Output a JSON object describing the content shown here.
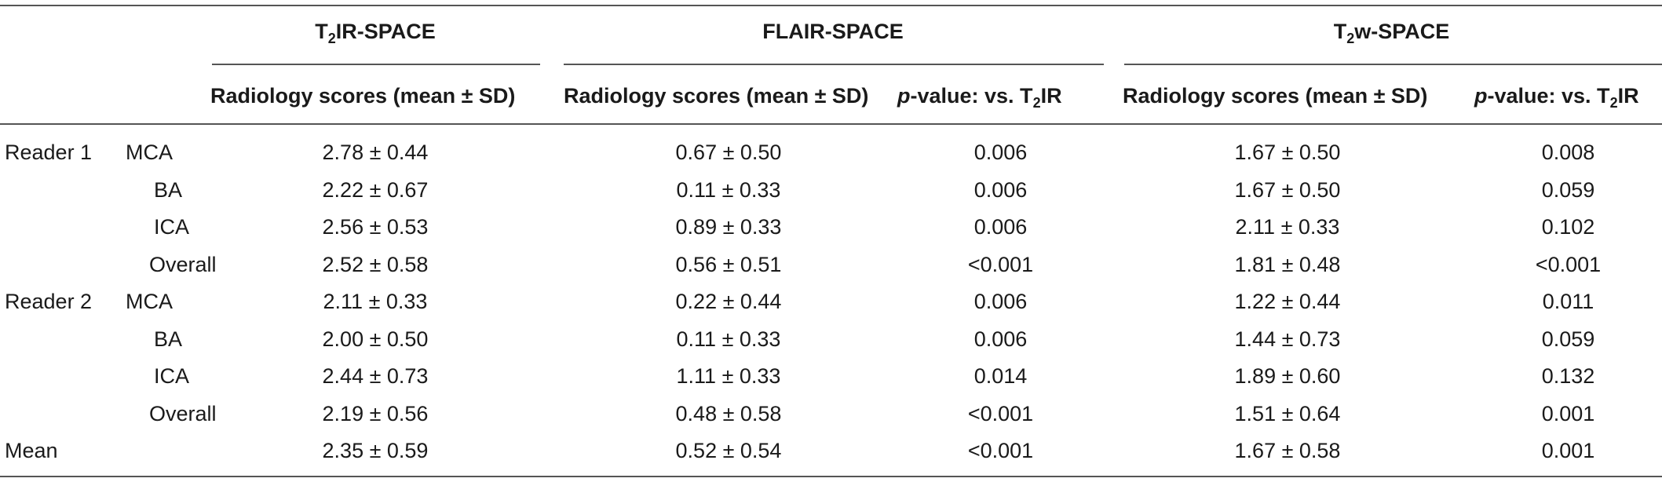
{
  "groups": [
    {
      "prefix": "T",
      "sub": "2",
      "suffix": "IR-SPACE"
    },
    {
      "prefix": "FLAIR-SPACE",
      "sub": "",
      "suffix": ""
    },
    {
      "prefix": "T",
      "sub": "2",
      "suffix": "w-SPACE"
    }
  ],
  "columns": {
    "scores": "Radiology scores (mean ± SD)",
    "pvalue_italic": "p",
    "pvalue_rest": "-value: vs. T",
    "pvalue_sub": "2",
    "pvalue_end": "IR"
  },
  "rows": [
    {
      "reader": "Reader 1",
      "artery": "MCA",
      "t2ir": "2.78 ± 0.44",
      "flair": "0.67 ± 0.50",
      "flair_p": "0.006",
      "t2w": "1.67 ± 0.50",
      "t2w_p": "0.008"
    },
    {
      "reader": "",
      "artery": "BA",
      "t2ir": "2.22 ± 0.67",
      "flair": "0.11 ± 0.33",
      "flair_p": "0.006",
      "t2w": "1.67 ± 0.50",
      "t2w_p": "0.059"
    },
    {
      "reader": "",
      "artery": "ICA",
      "t2ir": "2.56 ± 0.53",
      "flair": "0.89 ± 0.33",
      "flair_p": "0.006",
      "t2w": "2.11 ± 0.33",
      "t2w_p": "0.102"
    },
    {
      "reader": "",
      "artery": "Overall",
      "t2ir": "2.52 ± 0.58",
      "flair": "0.56 ± 0.51",
      "flair_p": "<0.001",
      "t2w": "1.81 ± 0.48",
      "t2w_p": "<0.001"
    },
    {
      "reader": "Reader 2",
      "artery": "MCA",
      "t2ir": "2.11 ± 0.33",
      "flair": "0.22 ± 0.44",
      "flair_p": "0.006",
      "t2w": "1.22 ± 0.44",
      "t2w_p": "0.011"
    },
    {
      "reader": "",
      "artery": "BA",
      "t2ir": "2.00 ± 0.50",
      "flair": "0.11 ± 0.33",
      "flair_p": "0.006",
      "t2w": "1.44 ± 0.73",
      "t2w_p": "0.059"
    },
    {
      "reader": "",
      "artery": "ICA",
      "t2ir": "2.44 ± 0.73",
      "flair": "1.11 ± 0.33",
      "flair_p": "0.014",
      "t2w": "1.89 ± 0.60",
      "t2w_p": "0.132"
    },
    {
      "reader": "",
      "artery": "Overall",
      "t2ir": "2.19 ± 0.56",
      "flair": "0.48 ± 0.58",
      "flair_p": "<0.001",
      "t2w": "1.51 ± 0.64",
      "t2w_p": "0.001"
    },
    {
      "reader": "Mean",
      "artery": "",
      "t2ir": "2.35 ± 0.59",
      "flair": "0.52 ± 0.54",
      "flair_p": "<0.001",
      "t2w": "1.67 ± 0.58",
      "t2w_p": "0.001"
    }
  ]
}
